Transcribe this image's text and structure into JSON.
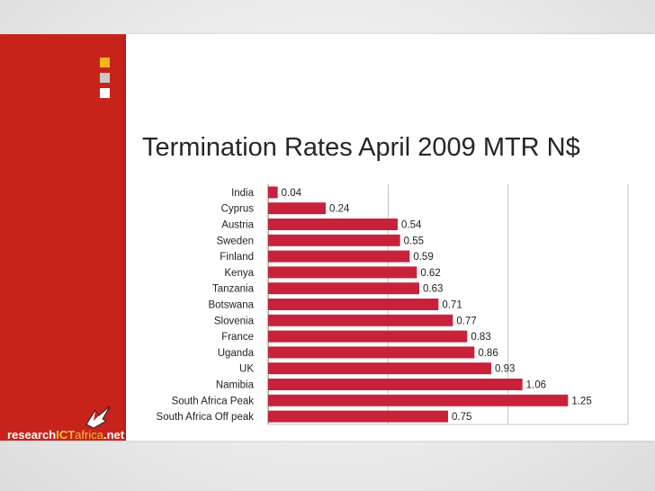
{
  "title": "Termination Rates April 2009 MTR N$",
  "logo": {
    "part1": "research",
    "part2": "ICT",
    "part3": "africa",
    "part4": ".net"
  },
  "colors": {
    "accent": "#c8231b",
    "bar": "#c8223a",
    "square_orange": "#f2b51e",
    "square_gray": "#c9c9c9"
  },
  "chart_data": {
    "type": "bar",
    "orientation": "horizontal",
    "title": "Termination Rates April 2009 MTR N$",
    "categories": [
      "India",
      "Cyprus",
      "Austria",
      "Sweden",
      "Finland",
      "Kenya",
      "Tanzania",
      "Botswana",
      "Slovenia",
      "France",
      "Uganda",
      "UK",
      "Namibia",
      "South Africa Peak",
      "South Africa Off peak"
    ],
    "values": [
      0.04,
      0.24,
      0.54,
      0.55,
      0.59,
      0.62,
      0.63,
      0.71,
      0.77,
      0.83,
      0.86,
      0.93,
      1.06,
      1.25,
      0.75
    ],
    "value_labels": [
      "0.04",
      "0.24",
      "0.54",
      "0.55",
      "0.59",
      "0.62",
      "0.63",
      "0.71",
      "0.77",
      "0.83",
      "0.86",
      "0.93",
      "1.06",
      "1.25",
      "0.75"
    ],
    "xlim": [
      0,
      1.5
    ],
    "grid": true,
    "data_labels": true,
    "legend": false
  }
}
